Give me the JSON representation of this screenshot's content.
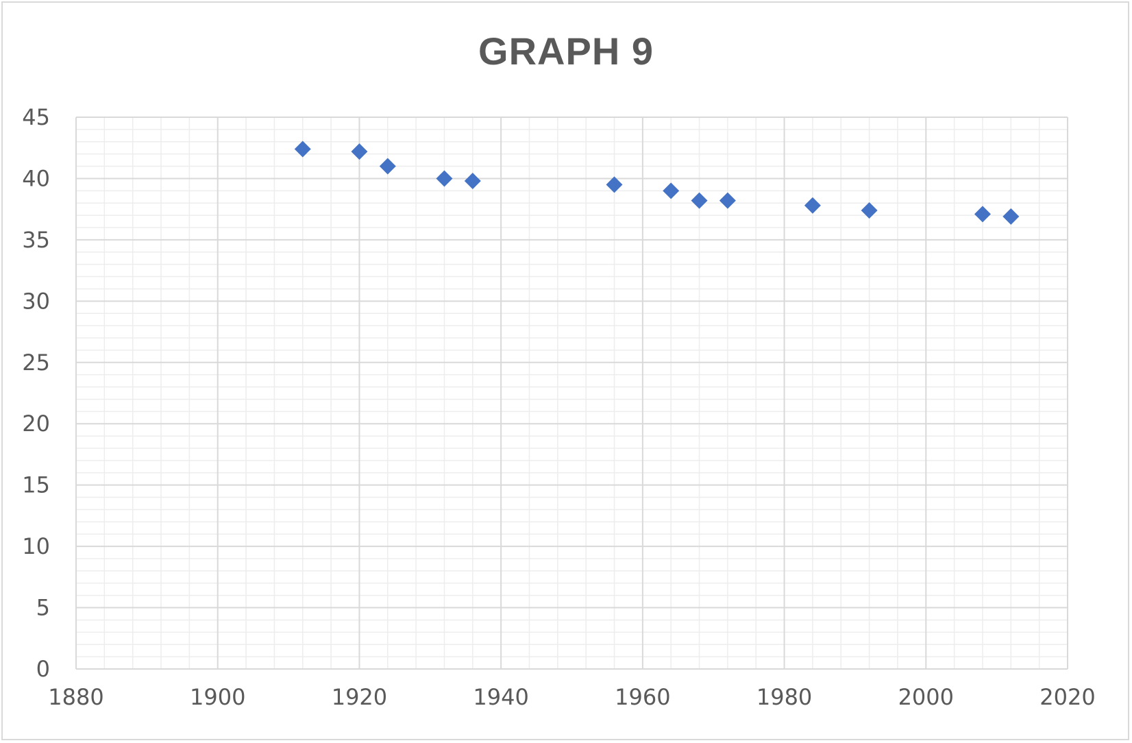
{
  "chart_data": {
    "type": "scatter",
    "title": "GRAPH 9",
    "xlabel": "",
    "ylabel": "",
    "xlim": [
      1880,
      2020
    ],
    "ylim": [
      0,
      45
    ],
    "x_major_step": 20,
    "x_minor_step": 4,
    "y_major_step": 5,
    "y_minor_step": 1,
    "grid": true,
    "legend": "none",
    "marker": "diamond",
    "colors": {
      "marker": "#4472c4",
      "grid_major": "#d9d9d9",
      "grid_minor": "#ededed",
      "text": "#595959"
    },
    "x_tick_labels": [
      "1880",
      "1900",
      "1920",
      "1940",
      "1960",
      "1980",
      "2000",
      "2020"
    ],
    "y_tick_labels": [
      "0",
      "5",
      "10",
      "15",
      "20",
      "25",
      "30",
      "35",
      "40",
      "45"
    ],
    "series": [
      {
        "points": [
          {
            "x": 1912,
            "y": 42.4
          },
          {
            "x": 1920,
            "y": 42.2
          },
          {
            "x": 1924,
            "y": 41.0
          },
          {
            "x": 1932,
            "y": 40.0
          },
          {
            "x": 1936,
            "y": 39.8
          },
          {
            "x": 1956,
            "y": 39.5
          },
          {
            "x": 1964,
            "y": 39.0
          },
          {
            "x": 1968,
            "y": 38.2
          },
          {
            "x": 1972,
            "y": 38.2
          },
          {
            "x": 1984,
            "y": 37.8
          },
          {
            "x": 1992,
            "y": 37.4
          },
          {
            "x": 2008,
            "y": 37.1
          },
          {
            "x": 2012,
            "y": 36.9
          }
        ]
      }
    ]
  }
}
